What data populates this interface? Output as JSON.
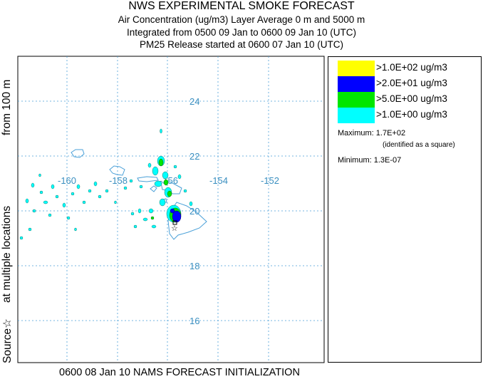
{
  "header": {
    "title": "NWS EXPERIMENTAL SMOKE FORECAST",
    "line2": "Air Concentration (ug/m3) Layer Average    0 m and  5000 m",
    "line3": "Integrated from 0500 09 Jan to 0600 09 Jan 10 (UTC)",
    "line4": "PM25 Release started at 0600 07 Jan 10 (UTC)"
  },
  "side_label": {
    "from": "from   100 m",
    "multi": "at multiple locations",
    "source": "Source☆"
  },
  "map": {
    "lat_labels": [
      "24",
      "22",
      "20",
      "18",
      "16"
    ],
    "lon_labels": [
      "-160",
      "-158",
      "-156",
      "-154",
      "-152"
    ],
    "grid_color": "#4a9fd8",
    "label_color": "#3a8fc0",
    "coast_color": "#4aa0d8"
  },
  "legend": {
    "items": [
      {
        "label": ">1.0E+02 ug/m3",
        "color": "#ffff00"
      },
      {
        "label": ">2.0E+01 ug/m3",
        "color": "#0000ff"
      },
      {
        "label": ">5.0E+00 ug/m3",
        "color": "#00e600"
      },
      {
        "label": ">1.0E+00 ug/m3",
        "color": "#00ffff"
      }
    ],
    "maximum": "Maximum: 1.7E+02",
    "maximum_note": "(identified as a square)",
    "minimum": "Minimum: 1.3E-07"
  },
  "footer": {
    "initialization": "0600 08 Jan 10 NAMS FORECAST INITIALIZATION"
  }
}
